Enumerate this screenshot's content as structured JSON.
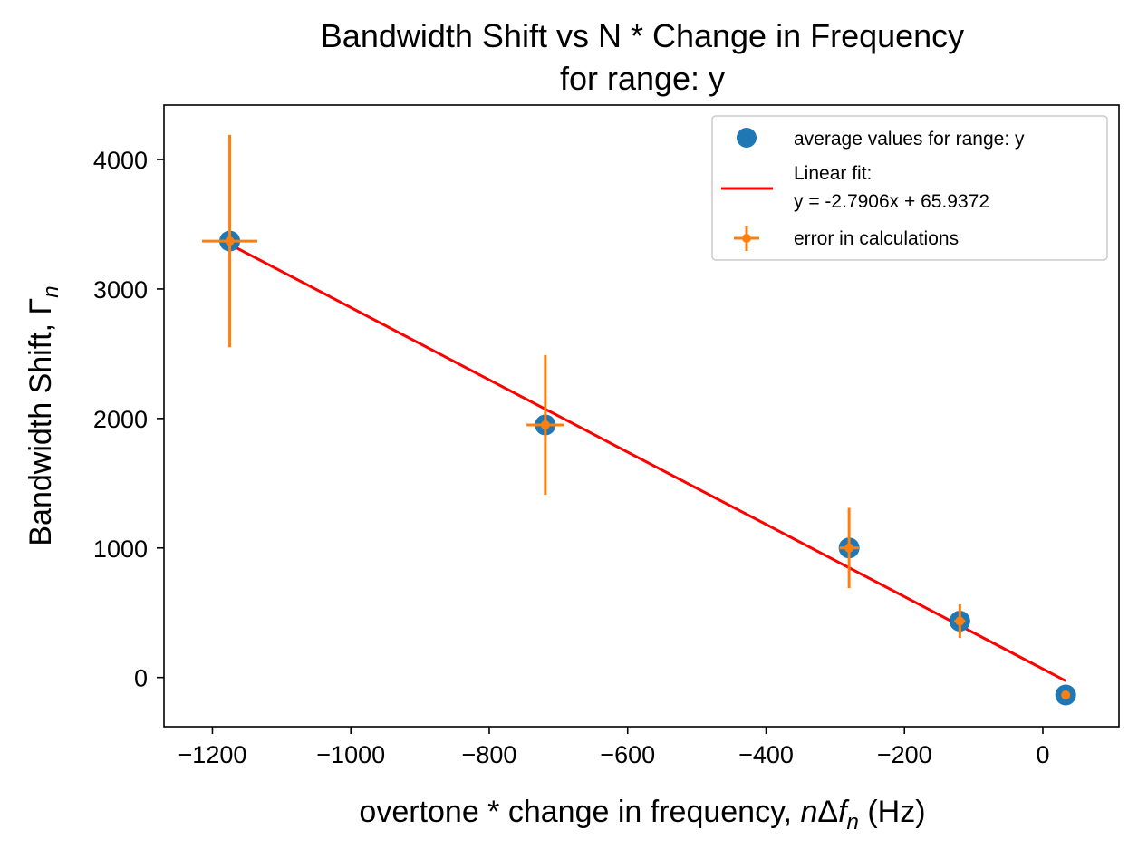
{
  "chart_data": {
    "type": "scatter",
    "title": "Bandwidth Shift vs N * Change in Frequency",
    "subtitle": "for range: y",
    "xlabel": {
      "prefix": "overtone * change in frequency, ",
      "math_n": "n",
      "math_delta": "Δ",
      "math_f": "f",
      "math_sub": "n",
      "suffix": " (Hz)"
    },
    "ylabel": {
      "prefix": "Bandwidth Shift, ",
      "math_gamma": "Γ",
      "math_sub": "n"
    },
    "xlim": [
      -1270,
      110
    ],
    "ylim": [
      -380,
      4420
    ],
    "xticks": [
      -1200,
      -1000,
      -800,
      -600,
      -400,
      -200,
      0
    ],
    "xtick_labels": [
      "−1200",
      "−1000",
      "−800",
      "−600",
      "−400",
      "−200",
      "0"
    ],
    "yticks": [
      0,
      1000,
      2000,
      3000,
      4000
    ],
    "ytick_labels": [
      "0",
      "1000",
      "2000",
      "3000",
      "4000"
    ],
    "grid": false,
    "legend_position": "top-right",
    "series": [
      {
        "name": "average values for range: y",
        "kind": "points",
        "color": "#1f77b4",
        "points": [
          {
            "x": -1175,
            "y": 3370
          },
          {
            "x": -719,
            "y": 1950
          },
          {
            "x": -280,
            "y": 1000
          },
          {
            "x": -120,
            "y": 435
          },
          {
            "x": 33,
            "y": -135
          }
        ]
      },
      {
        "name": "Linear fit:",
        "name_line2": "y = -2.7906x + 65.9372",
        "kind": "line",
        "color": "#ff0000",
        "slope": -2.7906,
        "intercept": 65.9372,
        "x_range": [
          -1175,
          33
        ]
      },
      {
        "name": "error in calculations",
        "kind": "errorbar",
        "color": "#ff7f0e",
        "points": [
          {
            "x": -1175,
            "y": 3370,
            "xerr": 40,
            "yerr": 820
          },
          {
            "x": -719,
            "y": 1950,
            "xerr": 27,
            "yerr": 540
          },
          {
            "x": -280,
            "y": 1000,
            "xerr": 14,
            "yerr": 310
          },
          {
            "x": -120,
            "y": 435,
            "xerr": 8,
            "yerr": 130
          },
          {
            "x": 33,
            "y": -135,
            "xerr": 5,
            "yerr": 12
          }
        ]
      }
    ]
  }
}
